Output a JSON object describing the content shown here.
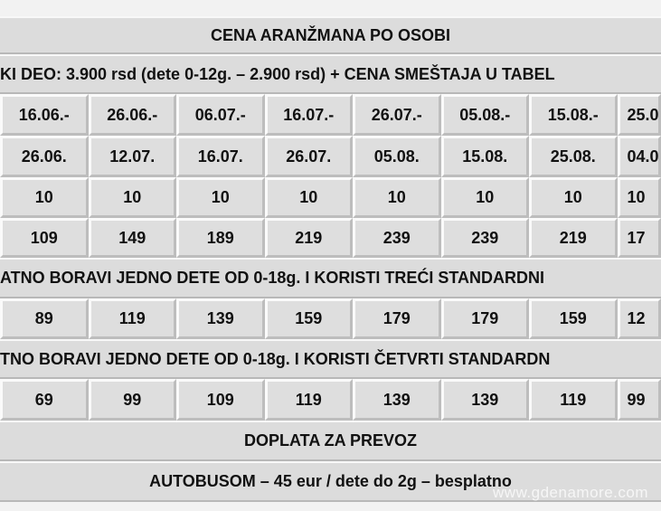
{
  "header": {
    "title": "CENA ARANŽMANA PO OSOBI",
    "subtitle": "KI DEO: 3.900 rsd (dete 0-12g. – 2.900 rsd) + CENA SMEŠTAJA U TABEL"
  },
  "table": {
    "rows": [
      [
        "16.06.-",
        "26.06.-",
        "06.07.-",
        "16.07.-",
        "26.07.-",
        "05.08.-",
        "15.08.-",
        "25.0"
      ],
      [
        "26.06.",
        "12.07.",
        "16.07.",
        "26.07.",
        "05.08.",
        "15.08.",
        "25.08.",
        "04.0"
      ],
      [
        10,
        10,
        10,
        10,
        10,
        10,
        10,
        10
      ],
      [
        109,
        149,
        189,
        219,
        239,
        239,
        219,
        17
      ]
    ]
  },
  "third_bed": {
    "note": "ATNO BORAVI JEDNO DETE OD 0-18g. I KORISTI TREĆI STANDARDNI",
    "prices": [
      89,
      119,
      139,
      159,
      179,
      179,
      159,
      12
    ]
  },
  "fourth_bed": {
    "note": "TNO BORAVI JEDNO DETE OD 0-18g. I KORISTI ČETVRTI STANDARDN",
    "prices": [
      69,
      99,
      109,
      119,
      139,
      139,
      119,
      99
    ]
  },
  "transport": {
    "title": "DOPLATA ZA PREVOZ",
    "text": "AUTOBUSOM – 45 eur / dete do 2g – besplatno"
  },
  "watermark": "www.gdenamore.com"
}
